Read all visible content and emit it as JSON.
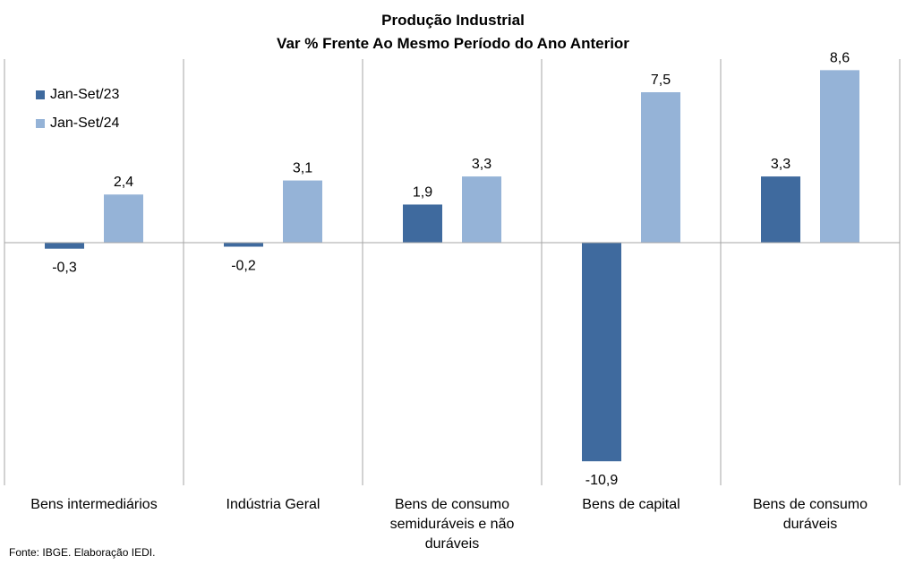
{
  "colors": {
    "series1": "#3f6a9e",
    "series2": "#95b3d7",
    "axis": "#a6a6a6"
  },
  "source": "Fonte: IBGE. Elaboração IEDI.",
  "chart_data": {
    "type": "bar",
    "title": "Produção  Industrial",
    "subtitle": "Var % Frente Ao Mesmo Período do Ano Anterior",
    "categories": [
      [
        "Bens intermediários"
      ],
      [
        "Indústria Geral"
      ],
      [
        "Bens de consumo",
        "semiduráveis e não",
        "duráveis"
      ],
      [
        "Bens de capital"
      ],
      [
        "Bens de consumo",
        "duráveis"
      ]
    ],
    "series": [
      {
        "name": "Jan-Set/23",
        "values": [
          -0.3,
          -0.2,
          1.9,
          -10.9,
          3.3
        ],
        "labels": [
          "-0,3",
          "-0,2",
          "1,9",
          "-10,9",
          "3,3"
        ]
      },
      {
        "name": "Jan-Set/24",
        "values": [
          2.4,
          3.1,
          3.3,
          7.5,
          8.6
        ],
        "labels": [
          "2,4",
          "3,1",
          "3,3",
          "7,5",
          "8,6"
        ]
      }
    ],
    "legend": "top-left",
    "grid": false
  }
}
